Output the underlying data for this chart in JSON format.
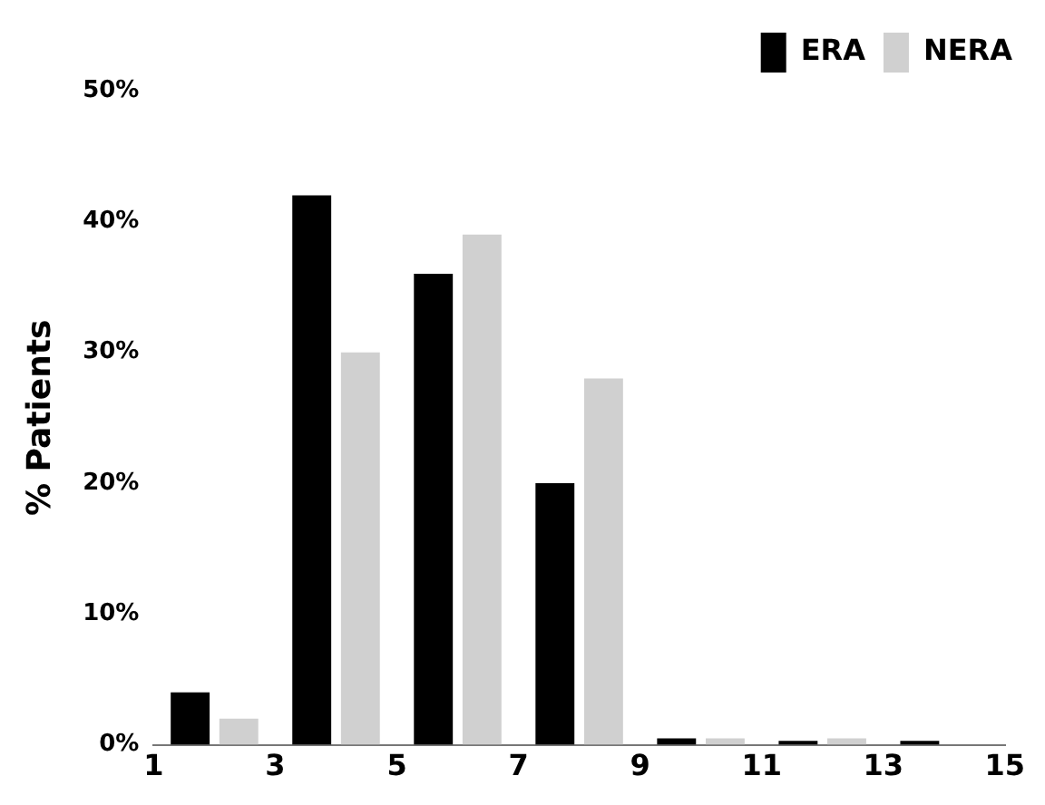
{
  "chart_data": {
    "type": "bar",
    "ylabel": "% Patients",
    "x": [
      2,
      4,
      6,
      8,
      10,
      12,
      14
    ],
    "series": [
      {
        "name": "ERA",
        "color": "#000000",
        "values": [
          4,
          42,
          36,
          20,
          0.5,
          0.3,
          0.3
        ]
      },
      {
        "name": "NERA",
        "color": "#d0d0d0",
        "values": [
          2,
          30,
          39,
          28,
          0.5,
          0.5,
          0
        ]
      }
    ],
    "xlim": [
      1,
      15
    ],
    "xticks": [
      1,
      3,
      5,
      7,
      9,
      11,
      13,
      15
    ],
    "ylim": [
      0,
      50
    ],
    "yticks": [
      {
        "value": 0,
        "label": "0%"
      },
      {
        "value": 10,
        "label": "10%"
      },
      {
        "value": 20,
        "label": "20%"
      },
      {
        "value": 30,
        "label": "30%"
      },
      {
        "value": 40,
        "label": "40%"
      },
      {
        "value": 50,
        "label": "50%"
      }
    ],
    "legend": "top right",
    "grid": false
  }
}
